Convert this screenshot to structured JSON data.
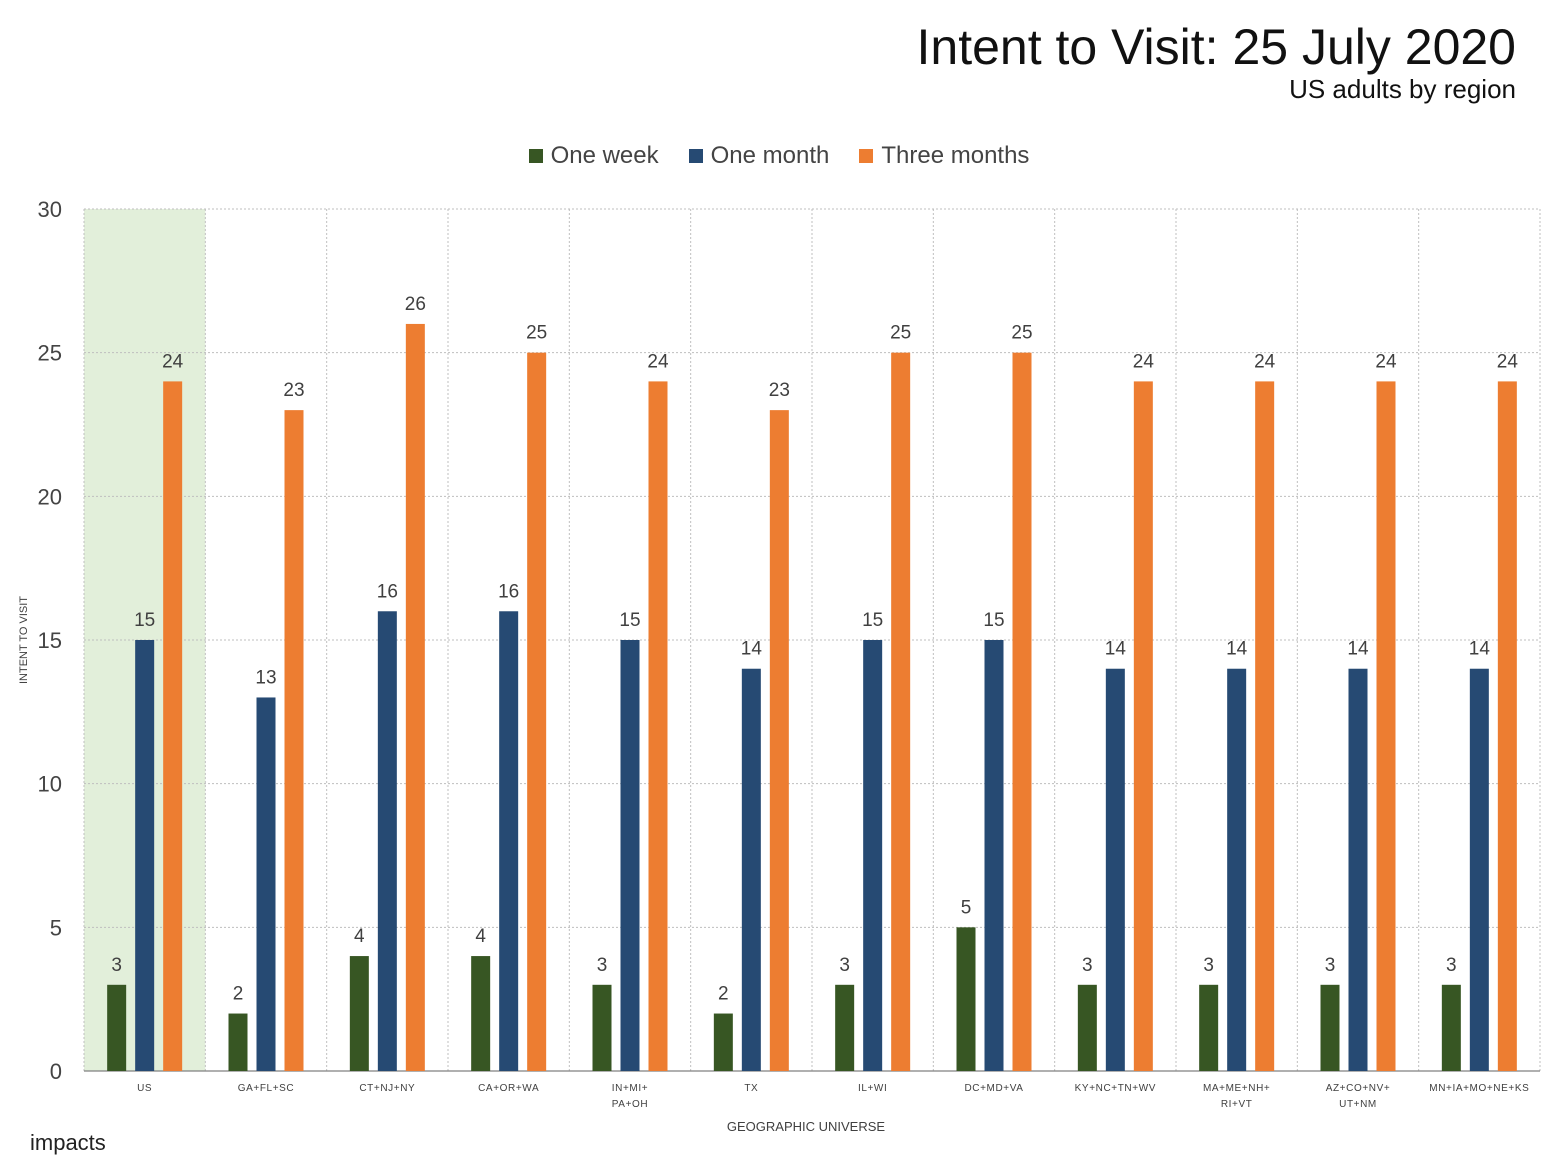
{
  "header": {
    "title": "Intent to Visit: 25 July 2020",
    "subtitle": "US adults by region"
  },
  "logo": {
    "text": "impacts"
  },
  "colors": {
    "one_week": "#375623",
    "one_month": "#264A73",
    "three_months": "#ED7D31",
    "highlight": "#E2EFDA",
    "grid": "#BFBFBF",
    "axis_text": "#444444"
  },
  "chart_data": {
    "type": "bar",
    "title": "Intent to Visit: 25 July 2020",
    "subtitle": "US adults by region",
    "xlabel": "GEOGRAPHIC UNIVERSE",
    "ylabel": "INTENT TO VISIT",
    "ylim": [
      0,
      30
    ],
    "yticks": [
      0,
      5,
      10,
      15,
      20,
      25,
      30
    ],
    "grid": true,
    "legend": "top-center",
    "highlighted_category": "US",
    "categories": [
      [
        "US"
      ],
      [
        "GA+FL+SC"
      ],
      [
        "CT+NJ+NY"
      ],
      [
        "CA+OR+WA"
      ],
      [
        "IN+MI+",
        "PA+OH"
      ],
      [
        "TX"
      ],
      [
        "IL+WI"
      ],
      [
        "DC+MD+VA"
      ],
      [
        "KY+NC+TN+WV"
      ],
      [
        "MA+ME+NH+",
        "RI+VT"
      ],
      [
        "AZ+CO+NV+",
        "UT+NM"
      ],
      [
        "MN+IA+MO+NE+KS"
      ]
    ],
    "series": [
      {
        "name": "One week",
        "values": [
          3,
          2,
          4,
          4,
          3,
          2,
          3,
          5,
          3,
          3,
          3,
          3
        ]
      },
      {
        "name": "One month",
        "values": [
          15,
          13,
          16,
          16,
          15,
          14,
          15,
          15,
          14,
          14,
          14,
          14
        ]
      },
      {
        "name": "Three months",
        "values": [
          24,
          23,
          26,
          25,
          24,
          23,
          25,
          25,
          24,
          24,
          24,
          24
        ]
      }
    ]
  }
}
